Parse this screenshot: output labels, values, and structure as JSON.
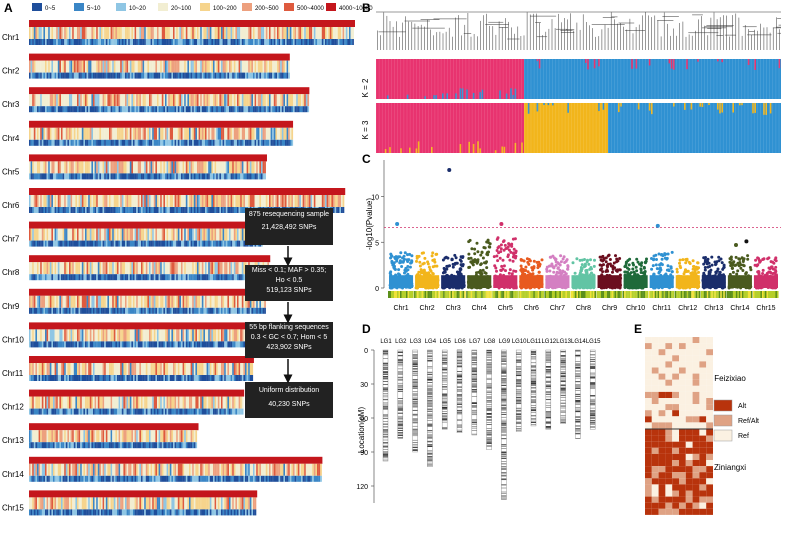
{
  "panels": {
    "A": "A",
    "B": "B",
    "C": "C",
    "D": "D",
    "E": "E"
  },
  "panelA": {
    "legend": [
      {
        "label": "0~5",
        "color": "#1f4e9b"
      },
      {
        "label": "5~10",
        "color": "#3a86c6"
      },
      {
        "label": "10~20",
        "color": "#8fc6e4"
      },
      {
        "label": "20~100",
        "color": "#f2eed2"
      },
      {
        "label": "100~200",
        "color": "#f6d48c"
      },
      {
        "label": "200~500",
        "color": "#eda07e"
      },
      {
        "label": "500~4000",
        "color": "#de5a3e"
      },
      {
        "label": "4000~10000",
        "color": "#c4161c"
      }
    ],
    "chromosomes": [
      "Chr1",
      "Chr2",
      "Chr3",
      "Chr4",
      "Chr5",
      "Chr6",
      "Chr7",
      "Chr8",
      "Chr9",
      "Chr10",
      "Chr11",
      "Chr12",
      "Chr13",
      "Chr14",
      "Chr15"
    ],
    "relative_lengths": [
      1.0,
      0.8,
      0.86,
      0.81,
      0.73,
      0.97,
      0.72,
      0.74,
      0.73,
      0.91,
      0.69,
      0.66,
      0.52,
      0.9,
      0.7
    ]
  },
  "flowchart": {
    "box1": [
      "875 resequencing sample",
      "21,428,492 SNPs"
    ],
    "box2": [
      "Miss < 0.1; MAF > 0.35;",
      "Ho < 0.5",
      "519,123 SNPs"
    ],
    "box3": [
      "55 bp flanking sequences",
      "0.3 < GC < 0.7; Hom < 5",
      "423,902 SNPs"
    ],
    "box4": [
      "Uniform distribution",
      "40,230 SNPs"
    ]
  },
  "panelB": {
    "k2_label": "K = 2",
    "k3_label": "K = 3",
    "colors": {
      "pink": "#e8336f",
      "blue": "#2f91d2",
      "yellow": "#f2b51b"
    }
  },
  "chart_data": [
    {
      "type": "scatter",
      "title": "Manhattan plot",
      "ylabel": "-log10(Pvalue)",
      "ylim": [
        0,
        14
      ],
      "yticks": [
        "0",
        "5",
        "10"
      ],
      "threshold": 6.6,
      "categories": [
        "Chr1",
        "Chr2",
        "Chr3",
        "Chr4",
        "Chr5",
        "Chr6",
        "Chr7",
        "Chr8",
        "Chr9",
        "Chr10",
        "Chr11",
        "Chr12",
        "Chr13",
        "Chr14",
        "Chr15"
      ],
      "series_colors": [
        "#2f91d2",
        "#f2b51b",
        "#1a2d6b",
        "#4a5a1e",
        "#d0306a",
        "#e85a1f",
        "#d47fc2",
        "#62c4a4",
        "#6b0e1e",
        "#1f6a3a",
        "#2f91d2",
        "#f2b51b",
        "#1a2d6b",
        "#4a5a1e",
        "#d0306a"
      ],
      "peak_values": [
        3.9,
        3.9,
        3.6,
        5.3,
        5.5,
        3.2,
        3.6,
        3.4,
        3.6,
        3.2,
        3.9,
        3.2,
        3.4,
        3.6,
        3.4
      ],
      "outliers": [
        {
          "chr": "Chr1",
          "value": 7.0
        },
        {
          "chr": "Chr3",
          "value": 12.9
        },
        {
          "chr": "Chr5",
          "value": 7.0
        },
        {
          "chr": "Chr11",
          "value": 6.8
        },
        {
          "chr": "Chr14",
          "value": 4.7
        },
        {
          "chr": "Chr14",
          "value": 5.1
        }
      ]
    },
    {
      "type": "bar",
      "title": "Linkage map",
      "ylabel": "Location(cM)",
      "yticks": [
        "0",
        "30",
        "60",
        "90",
        "120"
      ],
      "ylim": [
        0,
        135
      ],
      "categories": [
        "LG1",
        "LG2",
        "LG3",
        "LG4",
        "LG5",
        "LG6",
        "LG7",
        "LG8",
        "LG9",
        "LG10",
        "LG11",
        "LG12",
        "LG13",
        "LG14",
        "LG15"
      ],
      "values": [
        98,
        78,
        90,
        103,
        70,
        73,
        75,
        88,
        132,
        72,
        67,
        70,
        65,
        78,
        70
      ]
    }
  ],
  "panelE": {
    "row1_label": "Feizixiao",
    "row2_label": "Ziniangxi",
    "legend": [
      {
        "label": "Alt",
        "color": "#b8330c"
      },
      {
        "label": "Ref/Alt",
        "color": "#dfa284"
      },
      {
        "label": "Ref",
        "color": "#fbf1e2"
      }
    ]
  }
}
